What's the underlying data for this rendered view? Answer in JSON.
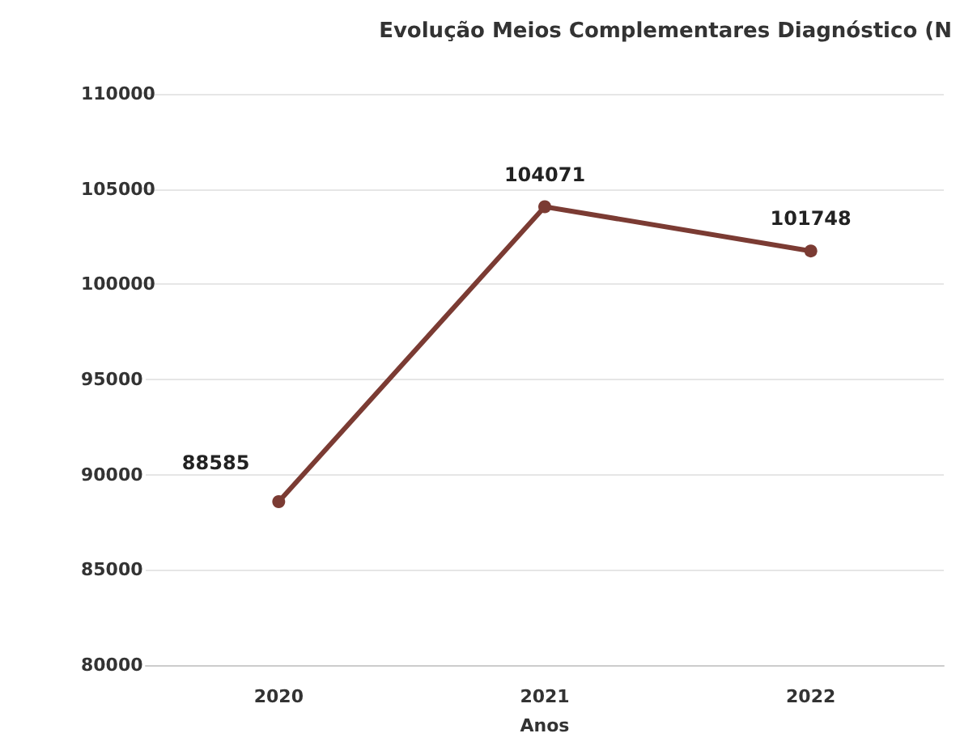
{
  "chart_data": {
    "type": "line",
    "title": "Evolução Meios Complementares Diagnóstico (N",
    "xlabel": "Anos",
    "categories": [
      "2020",
      "2021",
      "2022"
    ],
    "series": [
      {
        "color": "#7b3b33",
        "values": [
          88585,
          104071,
          101748
        ]
      }
    ],
    "ylim": [
      80000,
      110000
    ],
    "yticks": [
      80000,
      85000,
      90000,
      95000,
      100000,
      105000,
      110000
    ],
    "grid": "y",
    "marker": "circle",
    "line_style": "solid",
    "data_labels": true
  }
}
